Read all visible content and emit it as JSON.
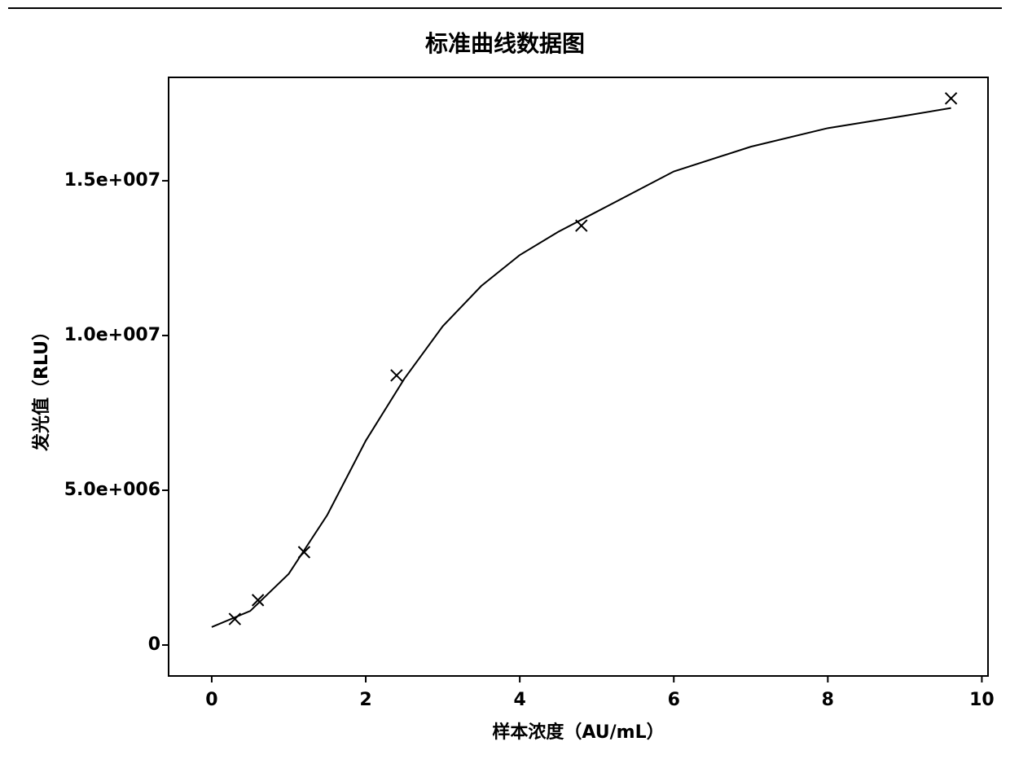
{
  "chart_data": {
    "type": "scatter",
    "title": "标准曲线数据图",
    "x_label": "样本浓度（AU/mL）",
    "y_label": "发光值（RLU）",
    "points": {
      "x": [
        0.3,
        0.6,
        1.2,
        2.4,
        4.8,
        9.6
      ],
      "y": [
        840000,
        1450000,
        3000000,
        8710000,
        13550000,
        17660000
      ],
      "marker": "x",
      "color": "#000000"
    },
    "fit_curve": {
      "x": [
        0,
        0.5,
        1,
        1.5,
        2,
        2.5,
        3,
        3.5,
        4,
        4.5,
        5,
        6,
        7,
        8,
        9,
        9.6
      ],
      "y": [
        580000,
        1100000,
        2300000,
        4200000,
        6600000,
        8600000,
        10300000,
        11600000,
        12600000,
        13350000,
        14000000,
        15300000,
        16100000,
        16700000,
        17100000,
        17350000
      ],
      "color": "#000000"
    },
    "xlim": [
      -0.56,
      10.08
    ],
    "ylim": [
      -1000000,
      18340000
    ],
    "xticks": [
      0,
      2,
      4,
      6,
      8,
      10
    ],
    "yticks": [
      0,
      {
        "value": 5000000,
        "label": "5.0e+006"
      },
      {
        "value": 10000000,
        "label": "1.0e+007"
      },
      {
        "value": 15000000,
        "label": "1.5e+007"
      }
    ],
    "grid": false
  }
}
